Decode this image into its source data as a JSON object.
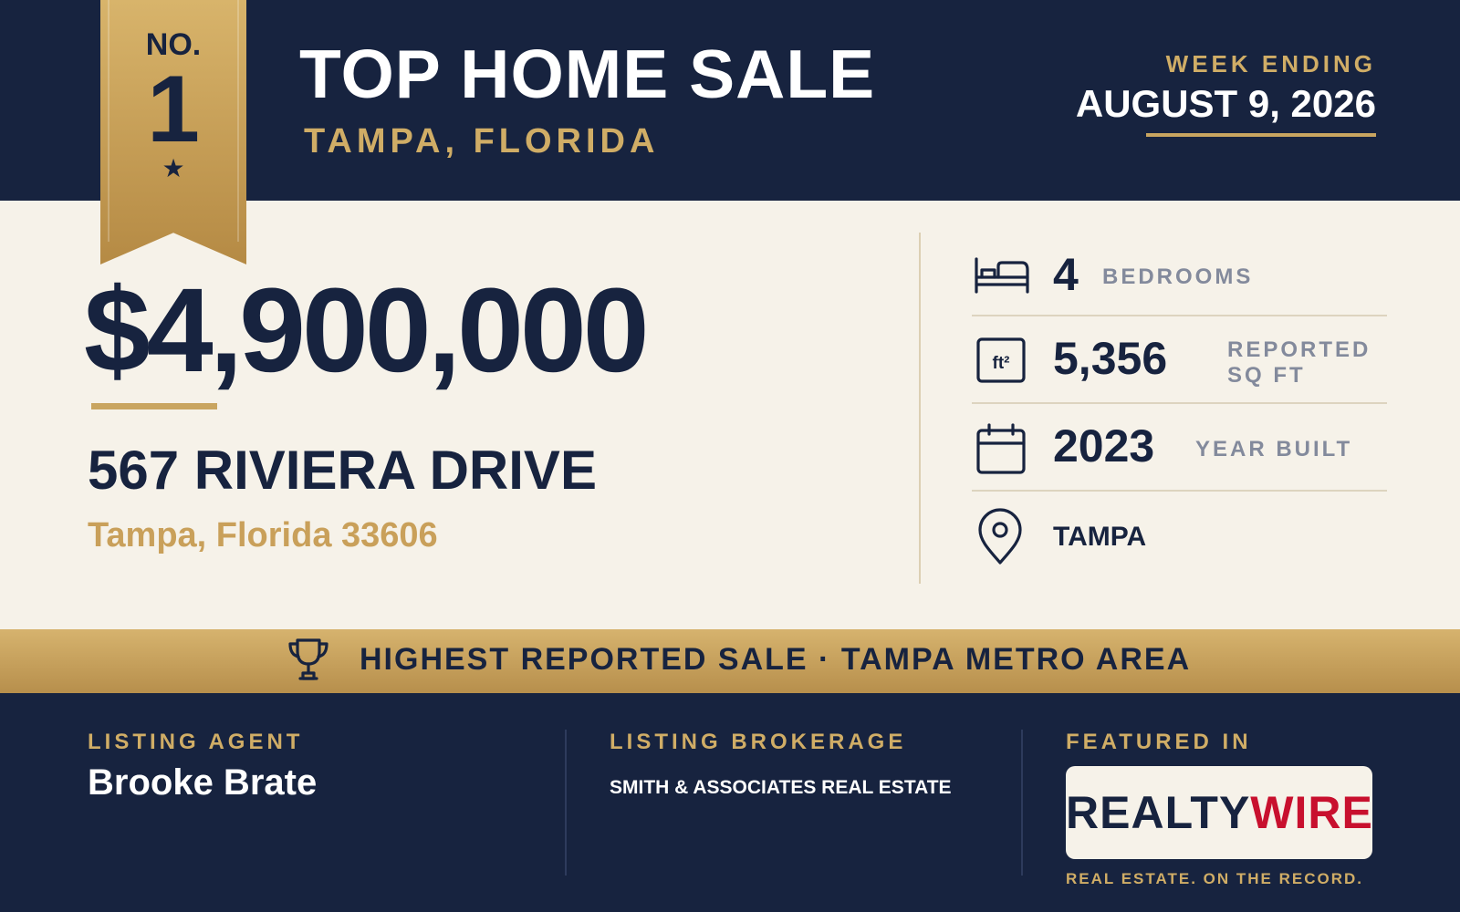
{
  "ribbon": {
    "no": "NO.",
    "rank": "1",
    "star": "★"
  },
  "header": {
    "title": "TOP HOME SALE",
    "subtitle": "TAMPA, FLORIDA",
    "week_label": "WEEK ENDING",
    "week_date": "AUGUST 9, 2026"
  },
  "sale": {
    "price": "$4,900,000",
    "address": "567 RIVIERA DRIVE",
    "city_line": "Tampa, Florida 33606"
  },
  "stats": {
    "bedrooms_value": "4",
    "bedrooms_label": "BEDROOMS",
    "sqft_icon_text": "ft²",
    "sqft_value": "5,356",
    "sqft_label_1": "REPORTED",
    "sqft_label_2": "SQ FT",
    "year_value": "2023",
    "year_label": "YEAR BUILT",
    "location_value": "TAMPA"
  },
  "banner": {
    "text": "HIGHEST REPORTED SALE · TAMPA METRO AREA"
  },
  "footer": {
    "agent_label": "LISTING AGENT",
    "agent_name": "Brooke Brate",
    "brokerage_label": "LISTING BROKERAGE",
    "brokerage_name": "SMITH & ASSOCIATES REAL ESTATE",
    "featured_label": "FEATURED IN",
    "logo_part1": "REALTY",
    "logo_part2": "WIRE",
    "tagline": "REAL ESTATE. ON THE RECORD."
  },
  "icons": [
    "bed-icon",
    "square-feet-icon",
    "calendar-icon",
    "location-pin-icon",
    "trophy-icon",
    "star-icon"
  ],
  "colors": {
    "navy": "#17233f",
    "gold": "#c9a560",
    "cream": "#f6f2e9",
    "logo_red": "#c8102e"
  }
}
